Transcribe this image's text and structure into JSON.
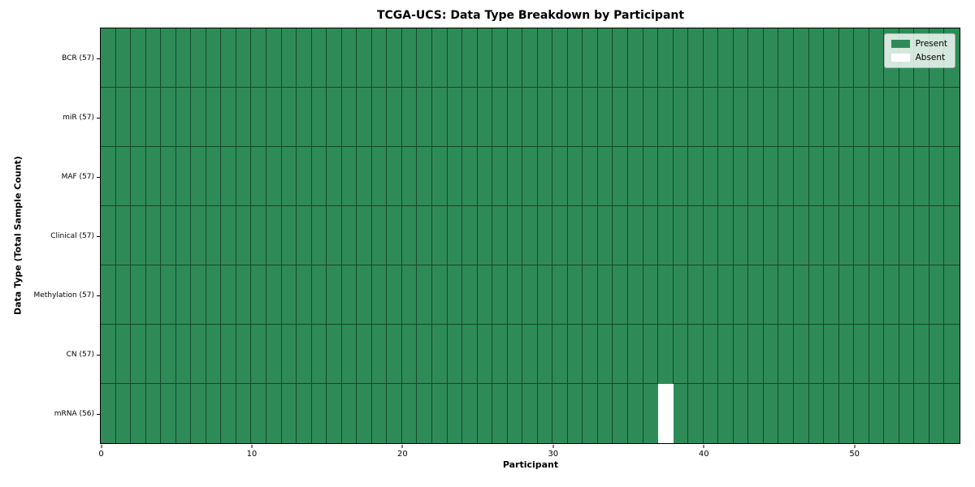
{
  "chart_data": {
    "type": "heatmap",
    "title": "TCGA-UCS: Data Type Breakdown by Participant",
    "xlabel": "Participant",
    "ylabel": "Data Type (Total Sample Count)",
    "xlim": [
      0,
      57
    ],
    "x_ticks": [
      0,
      10,
      20,
      30,
      40,
      50
    ],
    "n_participants": 57,
    "rows": [
      {
        "label": "BCR (57)",
        "data_type": "BCR",
        "present_count": 57,
        "absent_participants": []
      },
      {
        "label": "miR (57)",
        "data_type": "miR",
        "present_count": 57,
        "absent_participants": []
      },
      {
        "label": "MAF (57)",
        "data_type": "MAF",
        "present_count": 57,
        "absent_participants": []
      },
      {
        "label": "Clinical (57)",
        "data_type": "Clinical",
        "present_count": 57,
        "absent_participants": []
      },
      {
        "label": "Methylation (57)",
        "data_type": "Methylation",
        "present_count": 57,
        "absent_participants": []
      },
      {
        "label": "CN (57)",
        "data_type": "CN",
        "present_count": 57,
        "absent_participants": []
      },
      {
        "label": "mRNA (56)",
        "data_type": "mRNA",
        "present_count": 56,
        "absent_participants": [
          37
        ]
      }
    ],
    "legend": {
      "position": "upper right",
      "entries": [
        {
          "label": "Present",
          "color": "#2E8B57"
        },
        {
          "label": "Absent",
          "color": "#FFFFFF"
        }
      ]
    },
    "colors": {
      "present": "#2E8B57",
      "absent": "#FFFFFF",
      "grid_line": "rgba(0,0,0,0.5)",
      "spine": "#000000",
      "background": "#FFFFFF"
    }
  }
}
